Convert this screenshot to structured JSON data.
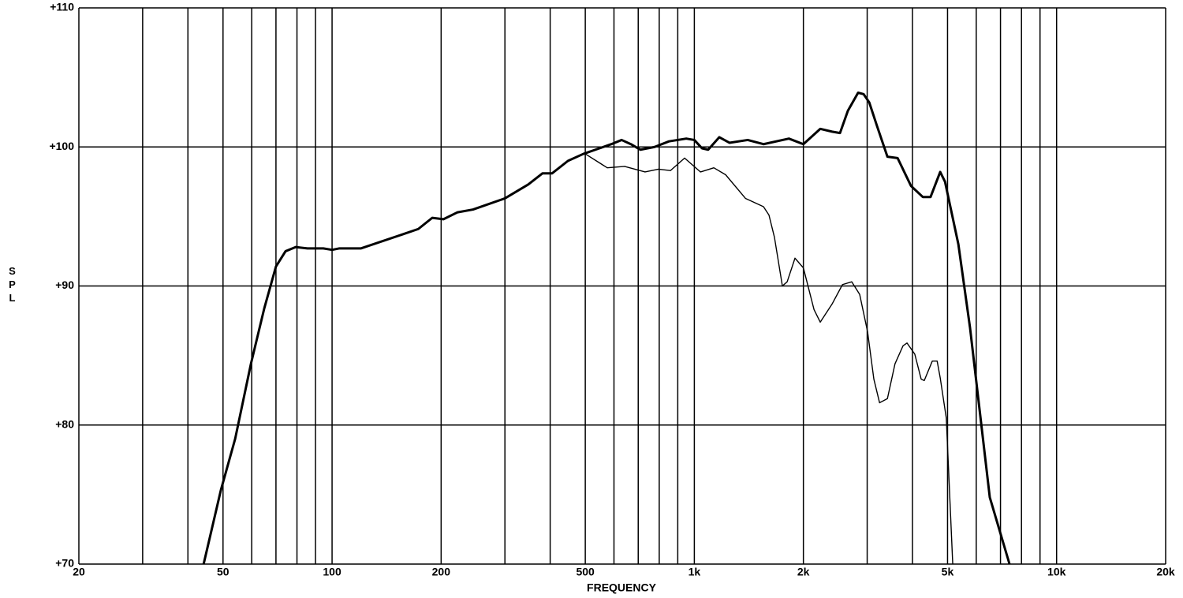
{
  "chart_data": {
    "type": "line",
    "x_label": "FREQUENCY",
    "y_label": "SPL",
    "log_x": true,
    "grid": true,
    "xlim": [
      20,
      20000
    ],
    "ylim": [
      70,
      110
    ],
    "xticks": [
      20,
      50,
      100,
      200,
      500,
      {
        "value": 1000,
        "label": "1k"
      },
      {
        "value": 2000,
        "label": "2k"
      },
      {
        "value": 5000,
        "label": "5k"
      },
      {
        "value": 10000,
        "label": "10k"
      },
      {
        "value": 20000,
        "label": "20k"
      }
    ],
    "xgrid": [
      30,
      40,
      60,
      70,
      80,
      90,
      300,
      400,
      600,
      700,
      800,
      900,
      3000,
      4000,
      6000,
      7000,
      8000,
      9000
    ],
    "yticks": [
      {
        "value": 70,
        "label": "+70"
      },
      {
        "value": 80,
        "label": "+80"
      },
      {
        "value": 90,
        "label": "+90"
      },
      {
        "value": 100,
        "label": "+100"
      },
      {
        "value": 110,
        "label": "+110"
      }
    ],
    "series": [
      {
        "color": "#000000",
        "width": 3,
        "x": [
          44.2,
          49.3,
          54,
          59.7,
          65,
          70,
          74.4,
          79.4,
          85.5,
          94.6,
          100,
          104.5,
          120,
          156,
          173,
          189,
          203,
          222,
          245,
          300,
          348,
          381,
          405,
          448,
          494,
          547,
          590,
          630,
          668,
          710,
          777,
          851,
          950,
          1000,
          1050,
          1092,
          1172,
          1250,
          1404,
          1552,
          1824,
          2000,
          2226,
          2400,
          2524,
          2654,
          2832,
          2932,
          3040,
          3194,
          3412,
          3640,
          3963,
          4272,
          4488,
          4772,
          4920,
          5356,
          5768,
          6540,
          7414
        ],
        "values": [
          70,
          75.3,
          79.0,
          84.4,
          88.4,
          91.4,
          92.5,
          92.8,
          92.7,
          92.7,
          92.6,
          92.7,
          92.7,
          93.7,
          94.1,
          94.9,
          94.8,
          95.3,
          95.5,
          96.3,
          97.3,
          98.1,
          98.1,
          99.0,
          99.5,
          99.9,
          100.2,
          100.5,
          100.2,
          99.8,
          100.0,
          100.4,
          100.6,
          100.5,
          99.9,
          99.8,
          100.7,
          100.3,
          100.5,
          100.2,
          100.6,
          100.2,
          101.3,
          101.1,
          101.0,
          102.6,
          103.9,
          103.8,
          103.2,
          101.5,
          99.3,
          99.2,
          97.2,
          96.4,
          96.4,
          98.2,
          97.5,
          93.0,
          87.0,
          74.8,
          70
        ]
      },
      {
        "color": "#000000",
        "width": 1.4,
        "x": [
          500,
          575,
          642,
          731,
          796,
          859,
          940,
          1040,
          1132,
          1220,
          1384,
          1552,
          1607,
          1664,
          1750,
          1804,
          1896,
          2000,
          2140,
          2226,
          2400,
          2564,
          2720,
          2860,
          3008,
          3130,
          3246,
          3412,
          3580,
          3768,
          3864,
          4060,
          4228,
          4312,
          4538,
          4680,
          4772,
          4960,
          5168
        ],
        "values": [
          99.5,
          98.5,
          98.6,
          98.2,
          98.4,
          98.3,
          99.2,
          98.2,
          98.5,
          98.0,
          96.3,
          95.7,
          95.1,
          93.5,
          90.0,
          90.3,
          92.0,
          91.3,
          88.3,
          87.4,
          88.7,
          90.1,
          90.3,
          89.4,
          86.7,
          83.3,
          81.6,
          81.9,
          84.4,
          85.7,
          85.9,
          85.1,
          83.3,
          83.2,
          84.6,
          84.6,
          83.4,
          80.5,
          70
        ]
      }
    ]
  }
}
